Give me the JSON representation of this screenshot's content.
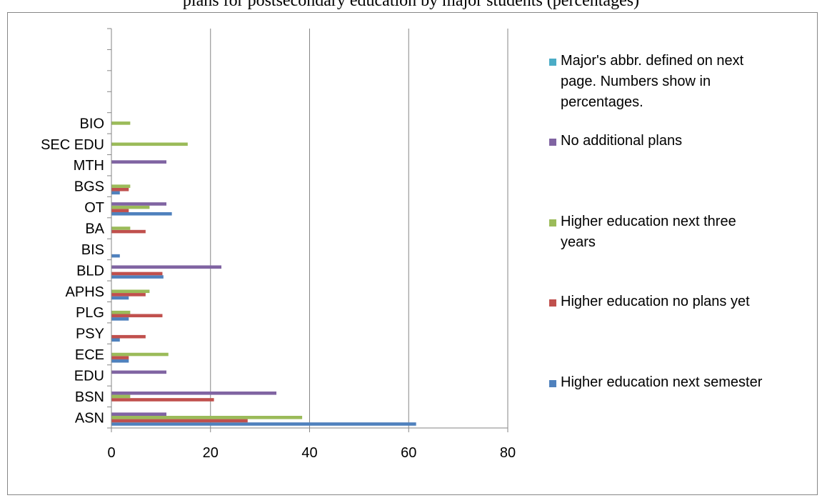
{
  "caption": "plans for postsecondary education by major students (percentages)",
  "chart_data": {
    "type": "bar",
    "orientation": "horizontal",
    "categories": [
      "ASN",
      "BSN",
      "EDU",
      "ECE",
      "PSY",
      "PLG",
      "APHS",
      "BLD",
      "BIS",
      "BA",
      "OT",
      "BGS",
      "MTH",
      "SEC EDU",
      "BIO"
    ],
    "empty_category_slots_above": 4,
    "xlim": [
      0,
      80
    ],
    "xticks": [
      0,
      20,
      40,
      60,
      80
    ],
    "grid": "vertical major gridlines",
    "legend_position": "right",
    "series": [
      {
        "name": "Higher education next semester",
        "color": "#4F81BD",
        "values": [
          61.5,
          0,
          0,
          3.5,
          1.7,
          3.5,
          3.5,
          10.5,
          1.7,
          0,
          12.2,
          1.7,
          0,
          0,
          0
        ]
      },
      {
        "name": "Higher education no plans yet",
        "color": "#C0504D",
        "values": [
          27.5,
          20.7,
          0,
          3.5,
          6.9,
          10.3,
          6.9,
          10.3,
          0,
          6.9,
          3.5,
          3.5,
          0,
          0,
          0
        ]
      },
      {
        "name": "Higher education next three years",
        "color": "#9BBB59",
        "values": [
          38.5,
          3.8,
          0,
          11.5,
          0,
          3.8,
          7.7,
          0,
          0,
          3.8,
          7.7,
          3.8,
          0,
          15.4,
          3.8
        ]
      },
      {
        "name": "No additional plans",
        "color": "#8064A2",
        "values": [
          11.1,
          33.3,
          11.1,
          0,
          0,
          0,
          0,
          22.2,
          0,
          0,
          11.1,
          0,
          11.1,
          0,
          0
        ]
      },
      {
        "name": "Major's abbr. defined on next page. Numbers show in percentages.",
        "color": "#4BACC6",
        "values": [
          0,
          0,
          0,
          0,
          0,
          0,
          0,
          0,
          0,
          0,
          0,
          0,
          0,
          0,
          0
        ]
      }
    ],
    "legend_order": [
      4,
      3,
      2,
      1,
      0
    ]
  }
}
